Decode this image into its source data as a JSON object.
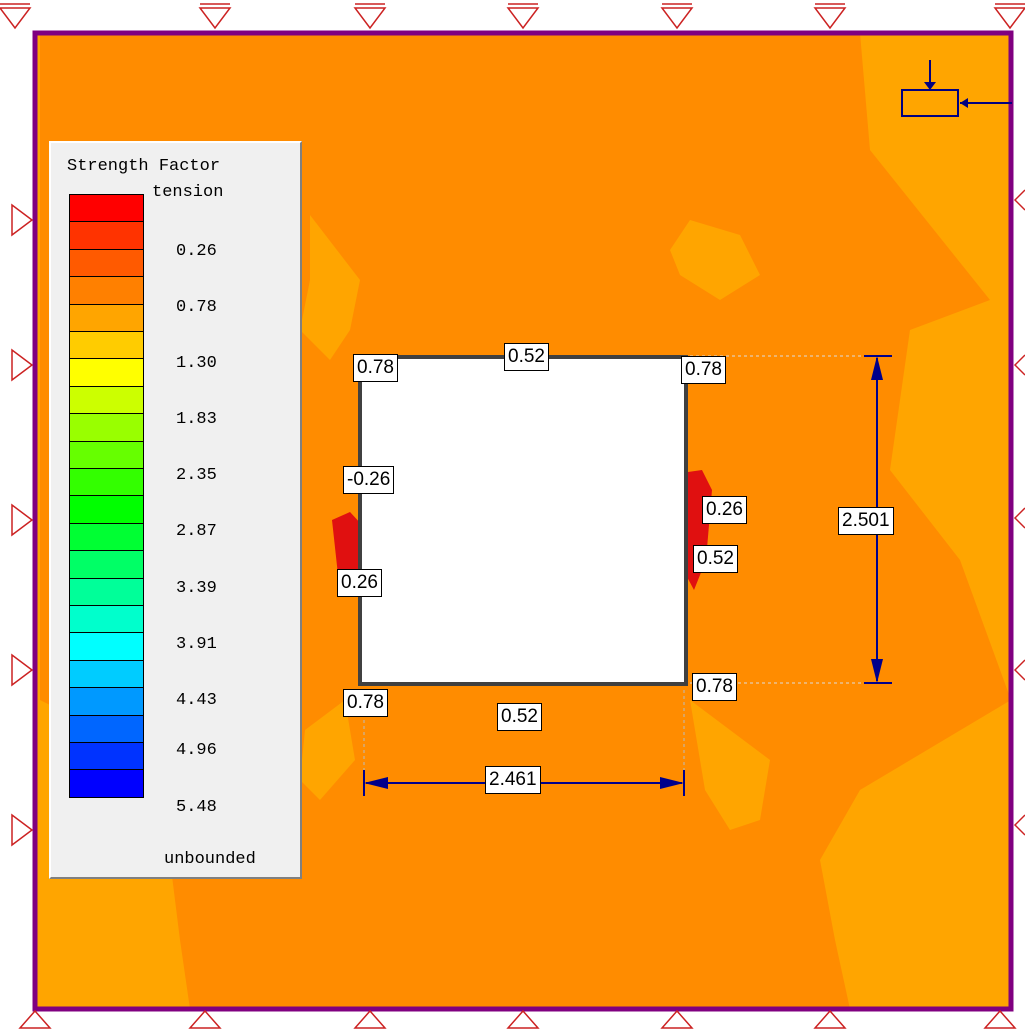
{
  "colors": {
    "background_dark": "#ff8c00",
    "background_light": "#ffa500",
    "boundary": "#800080",
    "dimension": "#00008b",
    "excavation": "#ffffff",
    "high_tension": "#e01010"
  },
  "legend": {
    "title": "Strength Factor",
    "labels": [
      "tension",
      "0.26",
      "0.78",
      "1.30",
      "1.83",
      "2.35",
      "2.87",
      "3.39",
      "3.91",
      "4.43",
      "4.96",
      "5.48",
      "unbounded"
    ],
    "swatches": [
      "#ff0000",
      "#ff3300",
      "#ff5a00",
      "#ff8000",
      "#ffa500",
      "#ffcc00",
      "#ffff00",
      "#ccff00",
      "#99ff00",
      "#66ff00",
      "#33ff00",
      "#00ff00",
      "#00ff33",
      "#00ff66",
      "#00ff99",
      "#00ffcc",
      "#00ffff",
      "#00ccff",
      "#0099ff",
      "#0066ff",
      "#0033ff",
      "#0000ff"
    ]
  },
  "values": {
    "top_left_corner": "0.78",
    "top_mid": "0.52",
    "top_right_corner": "0.78",
    "left_upper": "-0.26",
    "left_lower": "0.26",
    "right_upper": "0.26",
    "right_lower": "0.52",
    "bottom_left_corner": "0.78",
    "bottom_mid": "0.52",
    "bottom_right_corner": "0.78"
  },
  "dimensions": {
    "width": "2.461",
    "height": "2.501"
  }
}
